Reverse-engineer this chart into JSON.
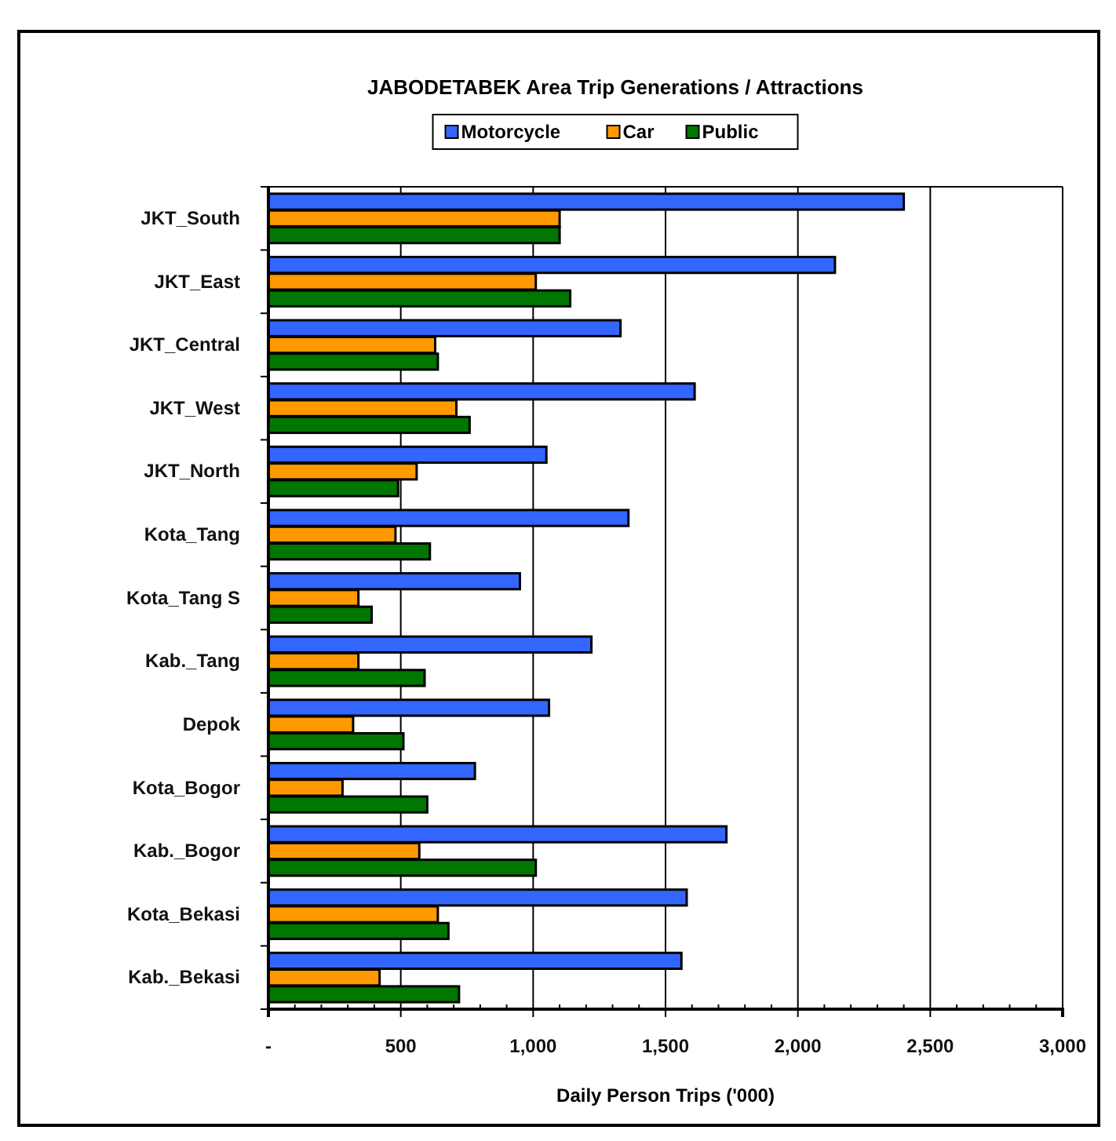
{
  "chart_data": {
    "type": "bar",
    "orientation": "horizontal",
    "title": "JABODETABEK Area Trip Generations / Attractions",
    "xlabel": "Daily Person Trips ('000)",
    "categories": [
      "JKT_South",
      "JKT_East",
      "JKT_Central",
      "JKT_West",
      "JKT_North",
      "Kota_Tang",
      "Kota_Tang S",
      "Kab._Tang",
      "Depok",
      "Kota_Bogor",
      "Kab._Bogor",
      "Kota_Bekasi",
      "Kab._Bekasi"
    ],
    "series": [
      {
        "name": "Motorcycle",
        "color": "#3366ff",
        "values": [
          2400,
          2140,
          1330,
          1610,
          1050,
          1360,
          950,
          1220,
          1060,
          780,
          1730,
          1580,
          1560
        ]
      },
      {
        "name": "Car",
        "color": "#ff9900",
        "values": [
          1100,
          1010,
          630,
          710,
          560,
          480,
          340,
          340,
          320,
          280,
          570,
          640,
          420
        ]
      },
      {
        "name": "Public",
        "color": "#007700",
        "values": [
          1100,
          1140,
          640,
          760,
          490,
          610,
          390,
          590,
          510,
          600,
          1010,
          680,
          720
        ]
      }
    ],
    "xlim": [
      0,
      3000
    ],
    "xticks": [
      {
        "value": 0,
        "label": "-"
      },
      {
        "value": 500,
        "label": "500"
      },
      {
        "value": 1000,
        "label": "1,000"
      },
      {
        "value": 1500,
        "label": "1,500"
      },
      {
        "value": 2000,
        "label": "2,000"
      },
      {
        "value": 2500,
        "label": "2,500"
      },
      {
        "value": 3000,
        "label": "3,000"
      }
    ],
    "grid": "x",
    "legend": "top"
  }
}
